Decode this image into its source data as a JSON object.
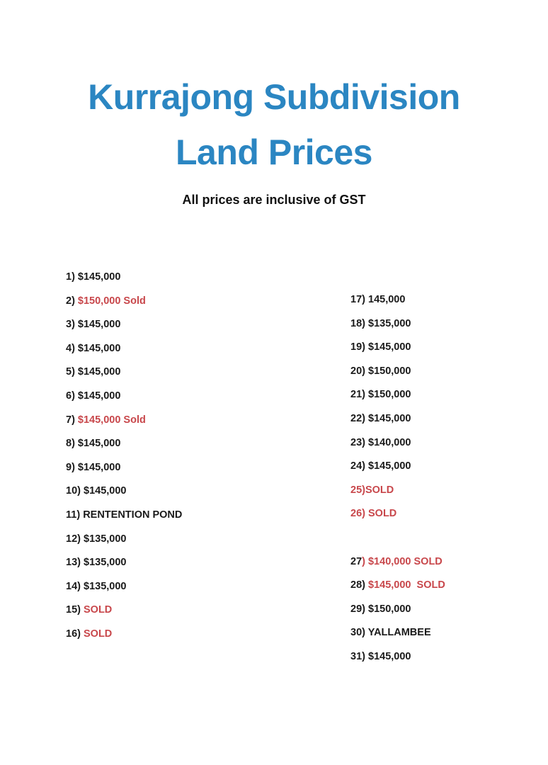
{
  "title_line1": "Kurrajong Subdivision",
  "title_line2": "Land Prices",
  "subtitle": "All prices are inclusive of GST",
  "colors": {
    "title": "#2b86c2",
    "sold": "#c8474b",
    "text": "#1a1a1a"
  },
  "left_column": [
    {
      "pre": "1) ",
      "pre_red": false,
      "post": "$145,000",
      "post_red": false
    },
    {
      "pre": "2) ",
      "pre_red": false,
      "post": "$150,000 Sold",
      "post_red": true
    },
    {
      "pre": "3) ",
      "pre_red": false,
      "post": "$145,000",
      "post_red": false
    },
    {
      "pre": "4) ",
      "pre_red": false,
      "post": "$145,000",
      "post_red": false
    },
    {
      "pre": "5) ",
      "pre_red": false,
      "post": "$145,000",
      "post_red": false
    },
    {
      "pre": "6) ",
      "pre_red": false,
      "post": "$145,000",
      "post_red": false
    },
    {
      "pre": "7) ",
      "pre_red": false,
      "post": "$145,000 Sold",
      "post_red": true
    },
    {
      "pre": "8) ",
      "pre_red": false,
      "post": "$145,000",
      "post_red": false
    },
    {
      "pre": "9) ",
      "pre_red": false,
      "post": "$145,000",
      "post_red": false
    },
    {
      "pre": "10) ",
      "pre_red": false,
      "post": "$145,000",
      "post_red": false
    },
    {
      "pre": "11) ",
      "pre_red": false,
      "post": "RENTENTION POND",
      "post_red": false
    },
    {
      "pre": "12) ",
      "pre_red": false,
      "post": "$135,000",
      "post_red": false
    },
    {
      "pre": "13) ",
      "pre_red": false,
      "post": "$135,000",
      "post_red": false
    },
    {
      "pre": "14) ",
      "pre_red": false,
      "post": "$135,000",
      "post_red": false
    },
    {
      "pre": "15) ",
      "pre_red": false,
      "post": "SOLD",
      "post_red": true
    },
    {
      "pre": "16) ",
      "pre_red": false,
      "post": "SOLD",
      "post_red": true
    }
  ],
  "right_column": [
    {
      "pre": "17) ",
      "pre_red": false,
      "post": "145,000",
      "post_red": false
    },
    {
      "pre": "18) ",
      "pre_red": false,
      "post": "$135,000",
      "post_red": false
    },
    {
      "pre": "19) ",
      "pre_red": false,
      "post": "$145,000",
      "post_red": false
    },
    {
      "pre": "20) ",
      "pre_red": false,
      "post": "$150,000",
      "post_red": false
    },
    {
      "pre": "21) ",
      "pre_red": false,
      "post": "$150,000",
      "post_red": false
    },
    {
      "pre": "22) ",
      "pre_red": false,
      "post": "$145,000",
      "post_red": false
    },
    {
      "pre": "23) ",
      "pre_red": false,
      "post": "$140,000",
      "post_red": false
    },
    {
      "pre": "24) ",
      "pre_red": false,
      "post": "$145,000",
      "post_red": false
    },
    {
      "pre": "25)",
      "pre_red": true,
      "post": "SOLD",
      "post_red": true
    },
    {
      "pre": "26) ",
      "pre_red": true,
      "post": "SOLD",
      "post_red": true
    },
    {
      "pre": "27",
      "pre_red": false,
      "post": ") $140,000 SOLD",
      "post_red": true,
      "gap_before": true
    },
    {
      "pre": "28) ",
      "pre_red": false,
      "post": "$145,000  SOLD",
      "post_red": true
    },
    {
      "pre": "29) ",
      "pre_red": false,
      "post": "$150,000",
      "post_red": false
    },
    {
      "pre": "30) ",
      "pre_red": false,
      "post": "YALLAMBEE",
      "post_red": false
    },
    {
      "pre": "31) ",
      "pre_red": false,
      "post": "$145,000",
      "post_red": false
    }
  ]
}
